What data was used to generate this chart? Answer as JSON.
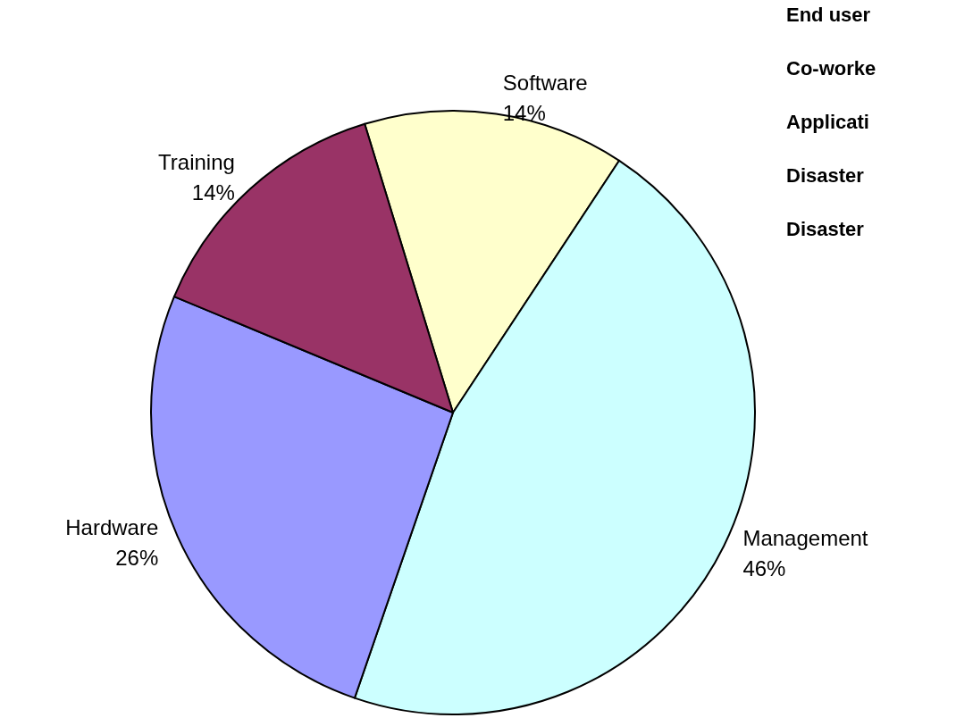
{
  "chart_data": {
    "type": "pie",
    "categories": [
      "Software",
      "Management",
      "Hardware",
      "Training"
    ],
    "values": [
      14,
      46,
      26,
      14
    ],
    "colors": [
      "#ffffcc",
      "#ccffff",
      "#9999ff",
      "#993366"
    ],
    "value_labels": [
      "14%",
      "46%",
      "26%",
      "14%"
    ],
    "legend": false,
    "annotations": [
      "End user",
      "Co-worke",
      "Applicati",
      "Disaster",
      "Disaster"
    ]
  }
}
